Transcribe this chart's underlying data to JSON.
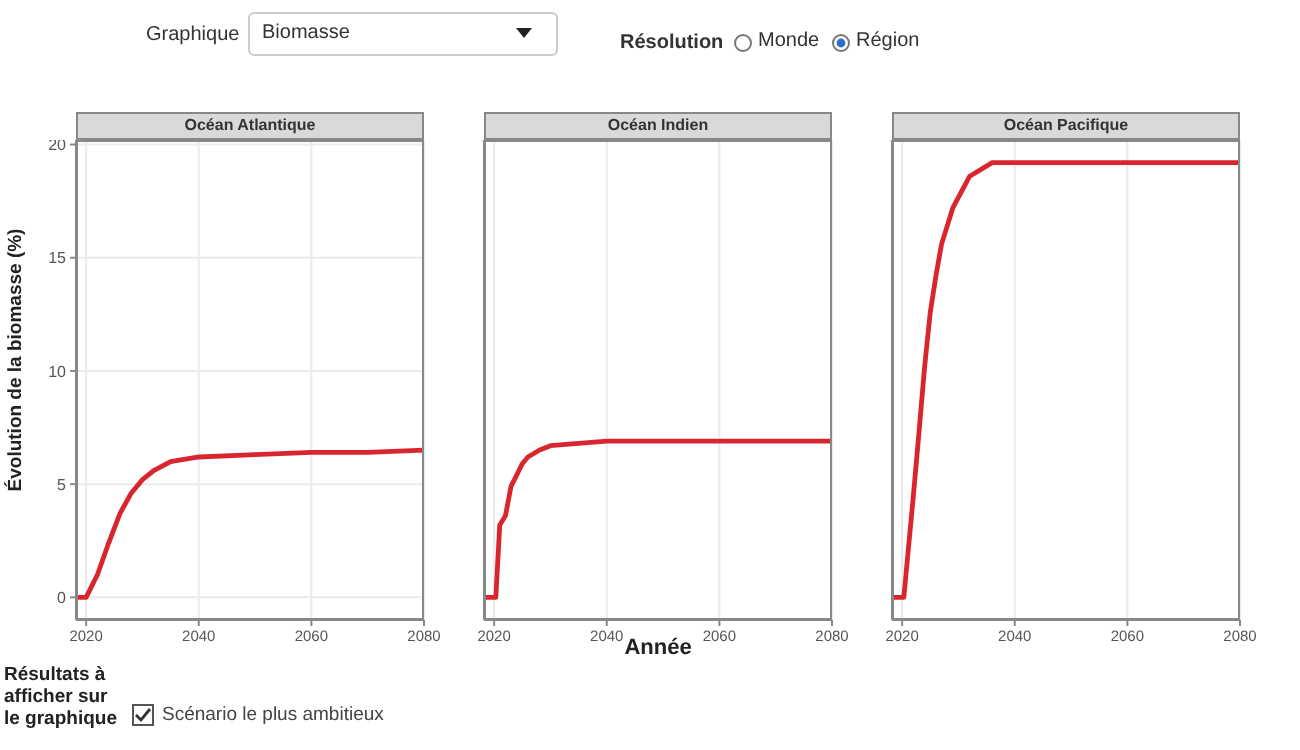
{
  "chart_data": [
    {
      "type": "other",
      "annotations": [
        "Graphique",
        "Biomasse",
        "Résolution",
        "Monde",
        "Région"
      ]
    },
    {
      "type": "line",
      "title": "Océan Atlantique",
      "ylabel": "Évolution de la biomasse (%)",
      "xlim": [
        2018.2,
        2080
      ],
      "xticks": [
        2020,
        2040,
        2060,
        2080
      ],
      "ylim": [
        -1,
        20.2
      ],
      "yticks": [
        0,
        5,
        10,
        15,
        20
      ],
      "grid": true,
      "series": [
        {
          "color": "#d9262e",
          "x": [
            2018.2,
            2020,
            2022,
            2024,
            2026,
            2028,
            2030,
            2032,
            2035,
            2040,
            2050,
            2060,
            2070,
            2080
          ],
          "values": [
            0,
            0,
            1,
            2.4,
            3.7,
            4.6,
            5.2,
            5.6,
            6,
            6.2,
            6.3,
            6.4,
            6.4,
            6.5
          ]
        }
      ]
    },
    {
      "type": "line",
      "title": "Océan Indien",
      "xlabel": "Année",
      "xlim": [
        2018.2,
        2080
      ],
      "xticks": [
        2020,
        2040,
        2060,
        2080
      ],
      "ylim": [
        -1,
        20.2
      ],
      "yticks": [
        0,
        5,
        10,
        15,
        20
      ],
      "grid": true,
      "tick_labels": "x",
      "series": [
        {
          "color": "#d9262e",
          "x": [
            2018.2,
            2020.3,
            2021,
            2022,
            2023,
            2024,
            2025,
            2026,
            2028,
            2030,
            2035,
            2040,
            2080
          ],
          "values": [
            0,
            0,
            3.2,
            3.6,
            4.9,
            5.4,
            5.9,
            6.2,
            6.5,
            6.7,
            6.8,
            6.9,
            6.9
          ]
        }
      ]
    },
    {
      "type": "line",
      "title": "Océan Pacifique",
      "xlim": [
        2018.2,
        2080
      ],
      "xticks": [
        2020,
        2040,
        2060,
        2080
      ],
      "ylim": [
        -1,
        20.2
      ],
      "yticks": [
        0,
        5,
        10,
        15,
        20
      ],
      "grid": true,
      "tick_labels": "x",
      "series": [
        {
          "color": "#d9262e",
          "x": [
            2018.2,
            2020.3,
            2022,
            2023,
            2024,
            2025,
            2026,
            2027,
            2029,
            2032,
            2036,
            2040,
            2080
          ],
          "values": [
            0,
            0,
            4.5,
            7.3,
            10.2,
            12.6,
            14.2,
            15.6,
            17.2,
            18.6,
            19.2,
            19.2,
            19.2
          ]
        }
      ]
    },
    {
      "type": "other",
      "annotations": [
        "Résultats à afficher sur le graphique",
        "Scénario le plus ambitieux"
      ]
    }
  ]
}
